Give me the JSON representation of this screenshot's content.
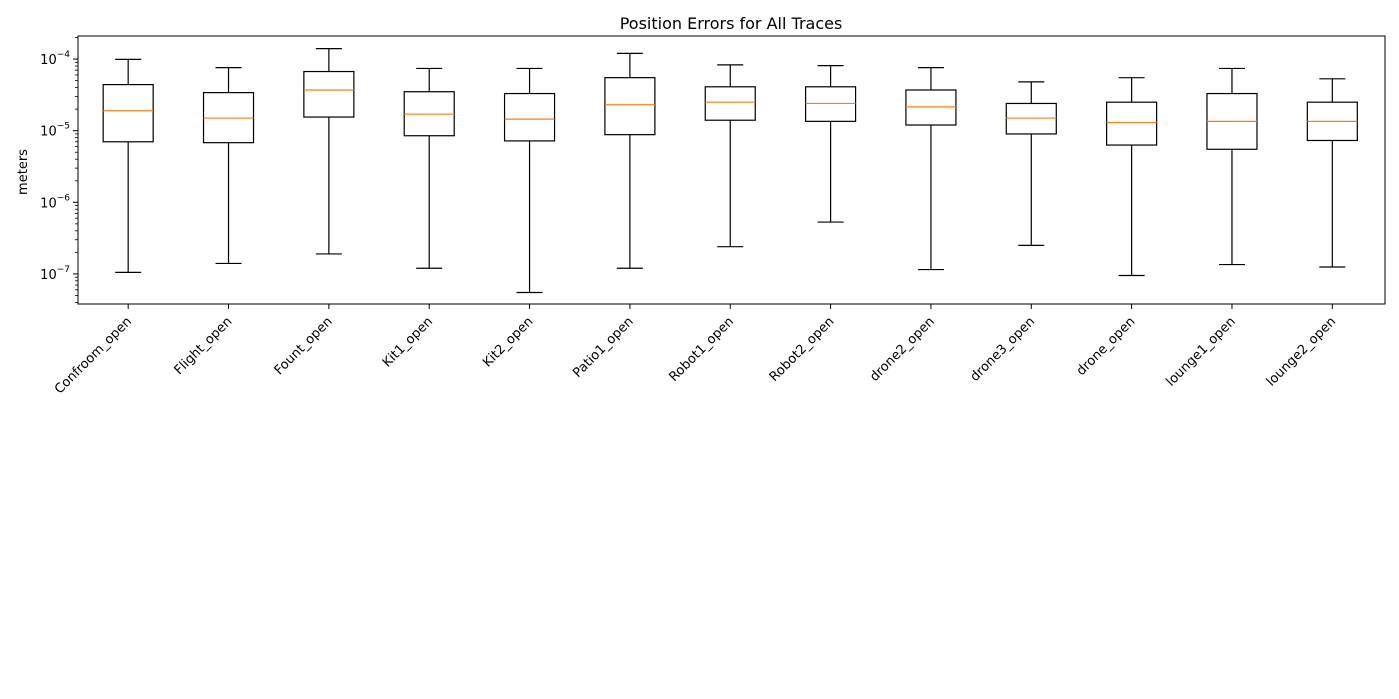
{
  "chart_data": {
    "type": "box",
    "title": "Position Errors for All Traces",
    "ylabel": "meters",
    "yscale": "log",
    "ylim": [
      3.8e-08,
      0.00021
    ],
    "grid": false,
    "colors": {
      "box": "#000000",
      "median": "#ff7f0e"
    },
    "ytick_values": [
      1e-07,
      1e-06,
      1e-05,
      0.0001
    ],
    "ytick_labels": [
      {
        "base": "10",
        "exp": "−7"
      },
      {
        "base": "10",
        "exp": "−6"
      },
      {
        "base": "10",
        "exp": "−5"
      },
      {
        "base": "10",
        "exp": "−4"
      }
    ],
    "categories": [
      "Confroom_open",
      "Flight_open",
      "Fount_open",
      "Kit1_open",
      "Kit2_open",
      "Patio1_open",
      "Robot1_open",
      "Robot2_open",
      "drone2_open",
      "drone3_open",
      "drone_open",
      "lounge1_open",
      "lounge2_open"
    ],
    "boxes": [
      {
        "whislo": 1.05e-07,
        "q1": 7e-06,
        "med": 1.9e-05,
        "q3": 4.4e-05,
        "whishi": 9.9e-05
      },
      {
        "whislo": 1.4e-07,
        "q1": 6.8e-06,
        "med": 1.5e-05,
        "q3": 3.4e-05,
        "whishi": 7.6e-05
      },
      {
        "whislo": 1.9e-07,
        "q1": 1.55e-05,
        "med": 3.7e-05,
        "q3": 6.7e-05,
        "whishi": 0.00014
      },
      {
        "whislo": 1.2e-07,
        "q1": 8.5e-06,
        "med": 1.7e-05,
        "q3": 3.5e-05,
        "whishi": 7.4e-05
      },
      {
        "whislo": 5.5e-08,
        "q1": 7.2e-06,
        "med": 1.45e-05,
        "q3": 3.3e-05,
        "whishi": 7.4e-05
      },
      {
        "whislo": 1.2e-07,
        "q1": 8.8e-06,
        "med": 2.3e-05,
        "q3": 5.5e-05,
        "whishi": 0.00012
      },
      {
        "whislo": 2.4e-07,
        "q1": 1.4e-05,
        "med": 2.5e-05,
        "q3": 4.1e-05,
        "whishi": 8.3e-05
      },
      {
        "whislo": 5.3e-07,
        "q1": 1.35e-05,
        "med": 2.4e-05,
        "q3": 4.1e-05,
        "whishi": 8.1e-05
      },
      {
        "whislo": 1.15e-07,
        "q1": 1.2e-05,
        "med": 2.15e-05,
        "q3": 3.7e-05,
        "whishi": 7.6e-05
      },
      {
        "whislo": 2.5e-07,
        "q1": 9e-06,
        "med": 1.5e-05,
        "q3": 2.4e-05,
        "whishi": 4.8e-05
      },
      {
        "whislo": 9.5e-08,
        "q1": 6.3e-06,
        "med": 1.3e-05,
        "q3": 2.5e-05,
        "whishi": 5.5e-05
      },
      {
        "whislo": 1.35e-07,
        "q1": 5.5e-06,
        "med": 1.35e-05,
        "q3": 3.3e-05,
        "whishi": 7.4e-05
      },
      {
        "whislo": 1.25e-07,
        "q1": 7.3e-06,
        "med": 1.35e-05,
        "q3": 2.5e-05,
        "whishi": 5.3e-05
      }
    ]
  }
}
